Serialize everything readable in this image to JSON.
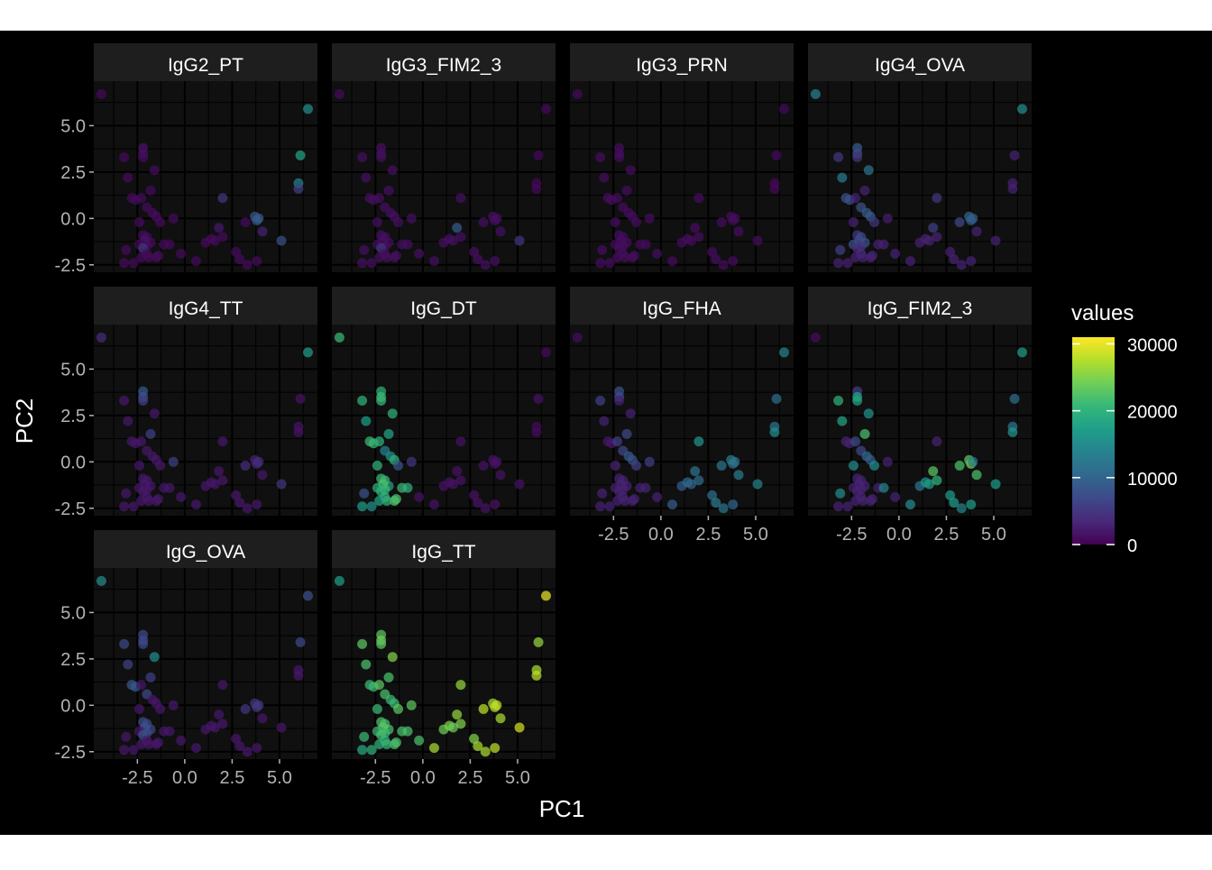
{
  "chart_data": {
    "type": "scatter",
    "facet_by": "antibody",
    "theme": "dark",
    "grid": true,
    "xlabel": "PC1",
    "ylabel": "PC2",
    "xlim": [
      -4.8,
      7.0
    ],
    "ylim": [
      -2.9,
      7.4
    ],
    "xticks": [
      -2.5,
      0.0,
      2.5,
      5.0
    ],
    "xtick_labels": [
      "-2.5",
      "0.0",
      "2.5",
      "5.0"
    ],
    "yticks": [
      -2.5,
      0.0,
      2.5,
      5.0
    ],
    "ytick_labels": [
      "-2.5",
      "0.0",
      "2.5",
      "5.0"
    ],
    "legend": {
      "title": "values",
      "position": "right",
      "colormap": "viridis",
      "range": [
        0,
        31000
      ],
      "breaks": [
        0,
        10000,
        20000,
        30000
      ],
      "break_labels": [
        "0",
        "10000",
        "20000",
        "30000"
      ],
      "colors": [
        "#440154",
        "#482878",
        "#3e4989",
        "#31688e",
        "#26828e",
        "#1f9e89",
        "#35b779",
        "#6ece58",
        "#b5de2b",
        "#fde725"
      ]
    },
    "points": [
      {
        "x": -4.4,
        "y": 6.7
      },
      {
        "x": 6.5,
        "y": 5.9
      },
      {
        "x": 6.1,
        "y": 3.4
      },
      {
        "x": 6.0,
        "y": 1.9
      },
      {
        "x": 6.0,
        "y": 1.6
      },
      {
        "x": -2.2,
        "y": 3.8
      },
      {
        "x": -2.2,
        "y": 3.5
      },
      {
        "x": -2.2,
        "y": 3.3
      },
      {
        "x": -3.2,
        "y": 3.3
      },
      {
        "x": -1.6,
        "y": 2.6
      },
      {
        "x": -3.0,
        "y": 2.2
      },
      {
        "x": -1.8,
        "y": 1.5
      },
      {
        "x": -2.8,
        "y": 1.1
      },
      {
        "x": -2.6,
        "y": 1.0
      },
      {
        "x": -2.3,
        "y": 1.1
      },
      {
        "x": -2.0,
        "y": 0.6
      },
      {
        "x": -1.7,
        "y": 0.3
      },
      {
        "x": -1.5,
        "y": 0.1
      },
      {
        "x": -2.4,
        "y": -0.2
      },
      {
        "x": -1.3,
        "y": -0.2
      },
      {
        "x": -0.6,
        "y": 0.0
      },
      {
        "x": -2.2,
        "y": -0.9
      },
      {
        "x": -2.0,
        "y": -1.0
      },
      {
        "x": -1.8,
        "y": -1.3
      },
      {
        "x": -2.1,
        "y": -1.2
      },
      {
        "x": -2.0,
        "y": -1.5
      },
      {
        "x": -2.4,
        "y": -1.4
      },
      {
        "x": -1.1,
        "y": -1.4
      },
      {
        "x": -0.8,
        "y": -1.4
      },
      {
        "x": -2.2,
        "y": -1.6
      },
      {
        "x": -3.1,
        "y": -1.7
      },
      {
        "x": -2.0,
        "y": -1.9
      },
      {
        "x": -1.5,
        "y": -2.1
      },
      {
        "x": -1.4,
        "y": -2.0
      },
      {
        "x": -1.9,
        "y": -2.1
      },
      {
        "x": -2.3,
        "y": -2.1
      },
      {
        "x": -2.7,
        "y": -2.4
      },
      {
        "x": -3.2,
        "y": -2.4
      },
      {
        "x": 0.6,
        "y": -2.3
      },
      {
        "x": -0.2,
        "y": -1.9
      },
      {
        "x": 1.1,
        "y": -1.3
      },
      {
        "x": 1.4,
        "y": -1.1
      },
      {
        "x": 1.6,
        "y": -1.2
      },
      {
        "x": 1.8,
        "y": -0.5
      },
      {
        "x": 2.0,
        "y": -1.0
      },
      {
        "x": 2.0,
        "y": 1.1
      },
      {
        "x": 2.7,
        "y": -1.8
      },
      {
        "x": 2.9,
        "y": -2.2
      },
      {
        "x": 3.3,
        "y": -2.5
      },
      {
        "x": 3.2,
        "y": -0.2
      },
      {
        "x": 3.8,
        "y": -0.1
      },
      {
        "x": 3.7,
        "y": 0.1
      },
      {
        "x": 3.9,
        "y": 0.0
      },
      {
        "x": 4.1,
        "y": -0.7
      },
      {
        "x": 3.8,
        "y": -2.3
      },
      {
        "x": 5.1,
        "y": -1.2
      }
    ],
    "panels": [
      {
        "title": "IgG2_PT",
        "values": [
          700,
          15000,
          18000,
          14000,
          6000,
          1500,
          1200,
          900,
          900,
          900,
          900,
          900,
          900,
          900,
          900,
          900,
          900,
          900,
          900,
          900,
          900,
          900,
          900,
          900,
          1800,
          900,
          900,
          900,
          900,
          5000,
          900,
          900,
          900,
          900,
          900,
          900,
          900,
          900,
          900,
          900,
          900,
          900,
          900,
          2000,
          900,
          5000,
          900,
          900,
          900,
          900,
          9000,
          8500,
          9000,
          3000,
          900,
          8000
        ]
      },
      {
        "title": "IgG3_FIM2_3",
        "values": [
          800,
          700,
          700,
          700,
          700,
          1200,
          1200,
          1200,
          1200,
          1200,
          1200,
          1200,
          1200,
          1200,
          1200,
          1200,
          1200,
          1200,
          1200,
          1200,
          1200,
          1200,
          1200,
          1200,
          1200,
          1200,
          1200,
          1200,
          1200,
          5000,
          1200,
          1200,
          1200,
          1200,
          1200,
          1200,
          1200,
          1200,
          1200,
          1200,
          1200,
          1200,
          1200,
          9000,
          1200,
          1200,
          1200,
          1200,
          1200,
          1200,
          1200,
          1200,
          1200,
          1200,
          1200,
          5000
        ]
      },
      {
        "title": "IgG3_PRN",
        "values": [
          800,
          700,
          700,
          700,
          700,
          1000,
          1000,
          1000,
          1000,
          1000,
          1000,
          1000,
          1000,
          1000,
          1000,
          1000,
          1000,
          1000,
          1000,
          1000,
          1000,
          1000,
          1000,
          1000,
          1000,
          1000,
          1000,
          1000,
          1000,
          1000,
          1000,
          1000,
          1000,
          1000,
          1000,
          1000,
          1000,
          1000,
          1000,
          1000,
          1000,
          1000,
          1000,
          1000,
          1000,
          1000,
          1000,
          1000,
          1000,
          1000,
          1000,
          1000,
          1000,
          1000,
          1000,
          1000
        ]
      },
      {
        "title": "IgG4_OVA",
        "values": [
          14000,
          15000,
          3000,
          3000,
          3000,
          9000,
          7000,
          5000,
          5000,
          12000,
          13000,
          3000,
          8000,
          8000,
          3000,
          8000,
          9000,
          9000,
          3000,
          5000,
          2500,
          5000,
          7000,
          8000,
          7000,
          5000,
          8000,
          3000,
          3000,
          4000,
          6000,
          4000,
          3000,
          3000,
          3000,
          3000,
          3000,
          3000,
          3000,
          3000,
          3000,
          3000,
          3000,
          6000,
          3000,
          5000,
          3000,
          3000,
          3000,
          7000,
          9000,
          10000,
          9000,
          3000,
          3000,
          3000
        ]
      },
      {
        "title": "IgG4_TT",
        "values": [
          4000,
          17000,
          1500,
          1500,
          1500,
          9000,
          8000,
          6000,
          2000,
          2000,
          2000,
          6000,
          2000,
          2000,
          2000,
          2000,
          2000,
          2000,
          2000,
          2000,
          6000,
          2000,
          2000,
          2000,
          2000,
          2000,
          2000,
          2000,
          2000,
          2000,
          2000,
          2000,
          2000,
          2000,
          2000,
          2000,
          2000,
          2000,
          2000,
          2000,
          2000,
          2000,
          2000,
          2000,
          2000,
          2000,
          2000,
          2000,
          2000,
          4000,
          4000,
          3000,
          4000,
          2000,
          2000,
          5000
        ]
      },
      {
        "title": "IgG_DT",
        "values": [
          21000,
          800,
          1500,
          800,
          800,
          20000,
          21000,
          21000,
          20000,
          20000,
          17000,
          18000,
          21000,
          21000,
          20000,
          14000,
          16000,
          20000,
          20000,
          8000,
          5000,
          21000,
          21000,
          18000,
          22000,
          21000,
          20000,
          21000,
          20000,
          20000,
          8000,
          20000,
          23000,
          22000,
          20000,
          18000,
          16000,
          17000,
          1500,
          1500,
          1500,
          1500,
          1500,
          1500,
          1500,
          1500,
          1500,
          1500,
          1500,
          1500,
          1500,
          1500,
          1500,
          1500,
          1500,
          1500
        ]
      },
      {
        "title": "IgG_FHA",
        "values": [
          1000,
          14000,
          11000,
          12000,
          15000,
          8000,
          7000,
          3000,
          6000,
          3000,
          3000,
          7000,
          2000,
          2000,
          6000,
          7000,
          9000,
          8000,
          3000,
          6000,
          6000,
          3000,
          3000,
          3000,
          3000,
          3000,
          3000,
          3000,
          3000,
          3000,
          3000,
          3000,
          3000,
          3000,
          3000,
          3000,
          3000,
          3000,
          9000,
          3000,
          9000,
          11000,
          10000,
          12000,
          11000,
          16000,
          11000,
          13000,
          12000,
          12000,
          11000,
          13000,
          12000,
          13000,
          10000,
          14000
        ]
      },
      {
        "title": "IgG_FIM2_3",
        "values": [
          1000,
          17000,
          11000,
          12000,
          16000,
          6000,
          18000,
          18000,
          20000,
          16000,
          18000,
          22000,
          3000,
          3000,
          7000,
          7000,
          11000,
          9000,
          15000,
          15000,
          3000,
          3000,
          3000,
          3000,
          3000,
          3000,
          3000,
          3000,
          14000,
          3000,
          15000,
          3000,
          3000,
          3000,
          3000,
          3000,
          3000,
          3000,
          15000,
          3000,
          12000,
          16000,
          17000,
          23000,
          20000,
          3000,
          17000,
          17000,
          14000,
          22000,
          25000,
          23000,
          13000,
          22000,
          17000,
          17000
        ]
      },
      {
        "title": "IgG_OVA",
        "values": [
          15000,
          8000,
          7000,
          2000,
          2000,
          7000,
          7000,
          7000,
          7000,
          15000,
          6000,
          6000,
          9000,
          9000,
          2000,
          7000,
          2000,
          2000,
          2000,
          2000,
          2000,
          7000,
          7000,
          7000,
          8000,
          7000,
          2000,
          2000,
          2000,
          8000,
          2000,
          2000,
          2000,
          2000,
          2000,
          2000,
          2000,
          2000,
          2000,
          2000,
          2000,
          2000,
          2000,
          2000,
          2000,
          2000,
          2000,
          2000,
          2000,
          5000,
          5000,
          5000,
          5000,
          2000,
          2000,
          2000
        ]
      },
      {
        "title": "IgG_TT",
        "values": [
          17000,
          30000,
          26000,
          27000,
          28000,
          23000,
          24000,
          23000,
          23000,
          25000,
          22000,
          22000,
          21000,
          21000,
          23000,
          22000,
          21000,
          21000,
          21000,
          23000,
          23000,
          22000,
          22000,
          22000,
          23000,
          21000,
          21000,
          22000,
          22000,
          22000,
          21000,
          20000,
          22000,
          22000,
          21000,
          20000,
          20000,
          19000,
          27000,
          22000,
          24000,
          25000,
          24000,
          26000,
          25000,
          26000,
          25000,
          27000,
          27000,
          28000,
          28000,
          27000,
          28000,
          27000,
          28000,
          29000
        ]
      }
    ]
  }
}
